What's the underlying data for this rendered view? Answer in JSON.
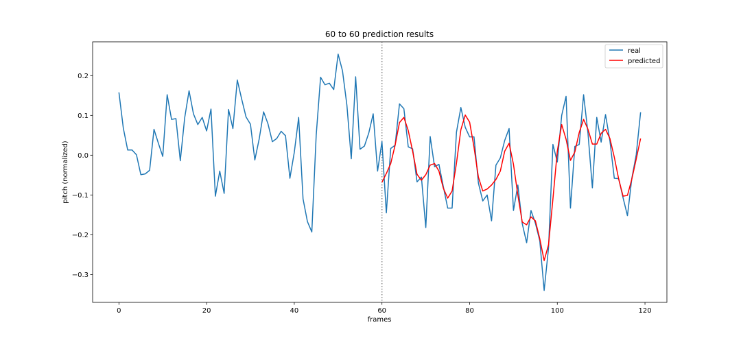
{
  "chart_data": {
    "type": "line",
    "title": "60 to 60 prediction results",
    "xlabel": "frames",
    "ylabel": "pitch (normalized)",
    "xlim": [
      -6,
      125
    ],
    "ylim": [
      -0.37,
      0.285
    ],
    "xticks": [
      0,
      20,
      40,
      60,
      80,
      100,
      120
    ],
    "yticks": [
      -0.3,
      -0.2,
      -0.1,
      0.0,
      0.1,
      0.2
    ],
    "xtick_labels": [
      "0",
      "20",
      "40",
      "60",
      "80",
      "100",
      "120"
    ],
    "ytick_labels": [
      "−0.3",
      "−0.2",
      "−0.1",
      "0.0",
      "0.1",
      "0.2"
    ],
    "grid": false,
    "legend_position": "top-right",
    "vline": {
      "x": 60,
      "style": "dotted",
      "color": "#808080"
    },
    "series": [
      {
        "name": "real",
        "color": "#1f77b4",
        "x_start": 0,
        "values": [
          0.158,
          0.068,
          0.013,
          0.013,
          0.001,
          -0.049,
          -0.047,
          -0.038,
          0.065,
          0.03,
          -0.003,
          0.152,
          0.09,
          0.092,
          -0.014,
          0.094,
          0.162,
          0.104,
          0.077,
          0.095,
          0.061,
          0.116,
          -0.103,
          -0.04,
          -0.096,
          0.115,
          0.067,
          0.189,
          0.141,
          0.096,
          0.078,
          -0.012,
          0.041,
          0.109,
          0.079,
          0.034,
          0.042,
          0.06,
          0.049,
          -0.058,
          0.007,
          0.095,
          -0.11,
          -0.167,
          -0.193,
          0.05,
          0.196,
          0.177,
          0.181,
          0.165,
          0.254,
          0.212,
          0.126,
          -0.009,
          0.197,
          0.015,
          0.023,
          0.056,
          0.104,
          -0.04,
          0.034,
          -0.145,
          0.017,
          0.025,
          0.129,
          0.117,
          0.021,
          0.016,
          -0.067,
          -0.055,
          -0.182,
          0.047,
          -0.029,
          -0.023,
          -0.079,
          -0.133,
          -0.133,
          0.058,
          0.12,
          0.07,
          0.046,
          0.046,
          -0.07,
          -0.115,
          -0.1,
          -0.165,
          -0.025,
          -0.007,
          0.037,
          0.067,
          -0.139,
          -0.075,
          -0.172,
          -0.22,
          -0.139,
          -0.171,
          -0.215,
          -0.34,
          -0.233,
          0.027,
          -0.017,
          0.1,
          0.148,
          -0.133,
          0.022,
          0.027,
          0.152,
          0.055,
          -0.082,
          0.095,
          0.033,
          0.102,
          0.036,
          -0.058,
          -0.059,
          -0.107,
          -0.152,
          -0.058,
          0.001,
          0.108
        ]
      },
      {
        "name": "predicted",
        "color": "#ff0000",
        "x_start": 60,
        "values": [
          -0.068,
          -0.046,
          -0.021,
          0.025,
          0.082,
          0.095,
          0.062,
          0.01,
          -0.048,
          -0.063,
          -0.049,
          -0.025,
          -0.021,
          -0.04,
          -0.083,
          -0.108,
          -0.09,
          -0.02,
          0.064,
          0.101,
          0.083,
          0.02,
          -0.055,
          -0.09,
          -0.085,
          -0.075,
          -0.061,
          -0.04,
          0.01,
          0.03,
          -0.023,
          -0.1,
          -0.168,
          -0.175,
          -0.155,
          -0.165,
          -0.21,
          -0.265,
          -0.225,
          -0.11,
          0.01,
          0.077,
          0.04,
          -0.013,
          0.008,
          0.057,
          0.09,
          0.065,
          0.028,
          0.028,
          0.055,
          0.065,
          0.042,
          -0.005,
          -0.06,
          -0.103,
          -0.101,
          -0.06,
          -0.01,
          0.042
        ]
      }
    ]
  }
}
